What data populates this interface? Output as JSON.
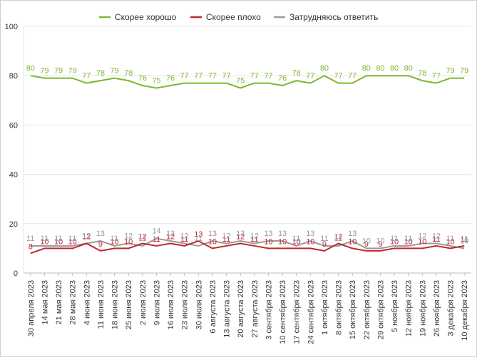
{
  "chart_data": {
    "type": "line",
    "title": "",
    "xlabel": "",
    "ylabel": "",
    "ylim": [
      0,
      100
    ],
    "yticks": [
      0,
      20,
      40,
      60,
      80,
      100
    ],
    "grid": true,
    "legend_position": "top",
    "categories": [
      "30 апреля 2023",
      "14 мая 2023",
      "21 мая 2023",
      "28 мая 2023",
      "4 июня 2023",
      "11 июня 2023",
      "18 июня 2023",
      "25 июня 2023",
      "2 июля 2023",
      "9 июля 2023",
      "16 июля 2023",
      "23 июля 2023",
      "30 июля 2023",
      "6 августа 2023",
      "13 августа 2023",
      "20 августа 2023",
      "27 августа 2023",
      "3 сентября 2023",
      "10 сентября 2023",
      "17 сентября 2023",
      "24 сентября 2023",
      "1 октября 2023",
      "8 октября 2023",
      "15 октября 2023",
      "22 октября 2023",
      "29 октября 2023",
      "5 ноября 2023",
      "12 ноября 2023",
      "19 ноября 2023",
      "26 ноября 2023",
      "3 декабря 2023",
      "10 декабря 2023"
    ],
    "series": [
      {
        "name": "Скорее хорошо",
        "color": "#7cb82f",
        "values": [
          80,
          79,
          79,
          79,
          77,
          78,
          79,
          78,
          76,
          75,
          76,
          77,
          77,
          77,
          77,
          75,
          77,
          77,
          76,
          78,
          77,
          80,
          77,
          77,
          80,
          80,
          80,
          80,
          78,
          77,
          79,
          79
        ]
      },
      {
        "name": "Скорее плохо",
        "color": "#c0272d",
        "values": [
          8,
          10,
          10,
          10,
          12,
          9,
          10,
          10,
          12,
          11,
          12,
          11,
          13,
          10,
          11,
          12,
          11,
          10,
          10,
          10,
          10,
          9,
          12,
          10,
          9,
          9,
          10,
          10,
          10,
          11,
          10,
          11
        ]
      },
      {
        "name": "Затрудняюсь ответить",
        "color": "#9a9a9a",
        "values": [
          11,
          11,
          11,
          11,
          12,
          13,
          11,
          12,
          11,
          14,
          13,
          12,
          11,
          13,
          12,
          13,
          12,
          13,
          13,
          11,
          13,
          11,
          11,
          13,
          10,
          10,
          11,
          11,
          12,
          12,
          11,
          10
        ]
      }
    ]
  }
}
